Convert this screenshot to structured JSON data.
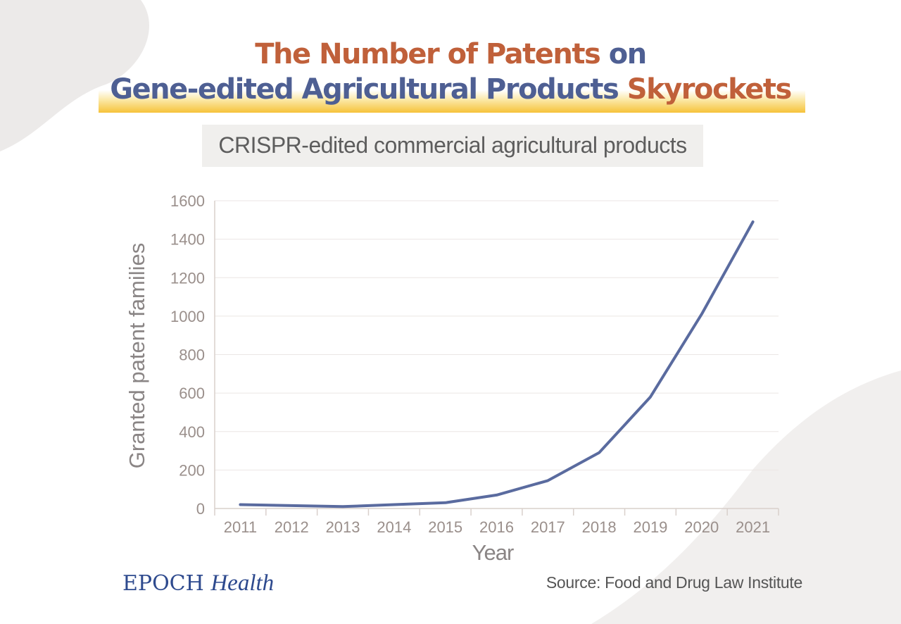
{
  "title": {
    "line1_part1": "The Number of Patents",
    "line1_part2": "on",
    "line2_part1": "Gene-edited Agricultural Products",
    "line2_part2": "Skyrockets"
  },
  "subtitle": "CRISPR-edited commercial agricultural products",
  "logo": {
    "brand": "EPOCH",
    "product": "Health"
  },
  "source": "Source: Food and Drug Law Institute",
  "colors": {
    "line": "#5a6b9f",
    "title_orange": "#c0603a",
    "title_blue": "#4e5f93",
    "highlight": "#f6c23a"
  },
  "chart_data": {
    "type": "line",
    "xlabel": "Year",
    "ylabel": "Granted patent families",
    "ylim": [
      0,
      1600
    ],
    "yticks": [
      0,
      200,
      400,
      600,
      800,
      1000,
      1200,
      1400,
      1600
    ],
    "categories": [
      "2011",
      "2012",
      "2013",
      "2014",
      "2015",
      "2016",
      "2017",
      "2018",
      "2019",
      "2020",
      "2021"
    ],
    "series": [
      {
        "values": [
          20,
          15,
          10,
          20,
          30,
          70,
          145,
          290,
          580,
          1010,
          1490
        ]
      }
    ],
    "grid": true,
    "legend": "none"
  }
}
